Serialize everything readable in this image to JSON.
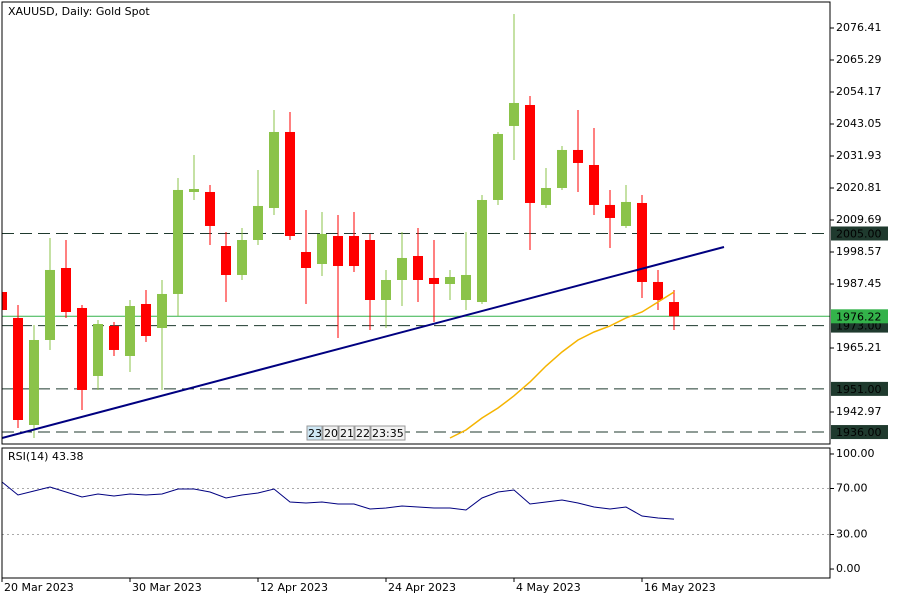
{
  "chart_data": [
    {
      "type": "candlestick",
      "title": "XAUUSD, Daily:  Gold Spot",
      "categories": [
        "20 Mar 2023",
        null,
        null,
        null,
        null,
        null,
        null,
        null,
        "30 Mar 2023",
        null,
        null,
        null,
        null,
        null,
        null,
        null,
        "12 Apr 2023",
        null,
        null,
        null,
        null,
        null,
        null,
        null,
        "24 Apr 2023",
        null,
        null,
        null,
        null,
        null,
        null,
        null,
        "4 May 2023",
        null,
        null,
        null,
        null,
        null,
        null,
        null,
        "16 May 2023",
        null,
        null
      ],
      "open": [
        1984.67,
        1975.64,
        1938.45,
        1967.99,
        1993.01,
        1979.11,
        1955.48,
        1972.86,
        1962.43,
        1980.5,
        1972.16,
        1983.98,
        2019.42,
        2019.42,
        2000.65,
        1990.58,
        2002.74,
        2013.86,
        2040.27,
        1998.57,
        1994.4,
        2004.13,
        2004.13,
        2002.74,
        1981.89,
        1988.84,
        1997.18,
        1989.54,
        1987.45,
        1981.89,
        1981.19,
        2016.64,
        2042.36,
        2049.65,
        2014.91,
        2020.81,
        2034.02,
        2028.8,
        2014.91,
        2007.61,
        2015.6,
        1988.15,
        1981.19
      ],
      "high": [
        1985.37,
        1980.15,
        1973.2,
        2003.43,
        2002.73,
        1980.15,
        1974.94,
        1974.24,
        1981.89,
        1985.37,
        1988.84,
        2024.3,
        2032.28,
        2021.85,
        2005.52,
        2006.91,
        2027.07,
        2047.91,
        2047.22,
        2013.17,
        2012.47,
        2011.43,
        2012.47,
        2004.83,
        1992.32,
        2005.52,
        2006.91,
        2002.73,
        1992.32,
        2005.52,
        2018.38,
        2040.27,
        2081.28,
        2052.78,
        2027.76,
        2035.41,
        2047.91,
        2041.66,
        2020.12,
        2021.85,
        2018.38,
        1992.32,
        1985.37
      ],
      "low": [
        1977.72,
        1937.41,
        1933.93,
        1964.52,
        1975.64,
        1943.66,
        1950.62,
        1962.43,
        1956.87,
        1967.3,
        1950.62,
        1976.33,
        2016.64,
        2000.99,
        1981.19,
        1988.84,
        2000.99,
        2011.43,
        2002.73,
        1980.5,
        1990.23,
        1968.69,
        1991.62,
        1971.47,
        1972.16,
        1979.8,
        1981.19,
        1974.24,
        1981.89,
        1978.41,
        1980.5,
        2014.91,
        2030.54,
        1999.27,
        2013.86,
        2020.12,
        2019.42,
        2011.43,
        1999.96,
        2006.91,
        1982.58,
        1978.41,
        1971.47
      ],
      "close": [
        1978.41,
        1940.19,
        1967.99,
        1992.32,
        1977.72,
        1950.62,
        1973.55,
        1964.52,
        1979.8,
        1969.38,
        1983.98,
        2020.12,
        2020.46,
        2007.61,
        1990.58,
        2002.74,
        2014.56,
        2040.27,
        2004.13,
        1993.01,
        2004.83,
        1993.7,
        1993.7,
        1981.89,
        1988.84,
        1996.49,
        1988.84,
        1987.45,
        1989.88,
        1990.58,
        2016.64,
        2039.58,
        2050.35,
        2015.6,
        2020.81,
        2034.02,
        2029.5,
        2014.91,
        2010.39,
        2015.95,
        1988.15,
        1981.89,
        1976.22
      ],
      "up_color": "#8bc34a",
      "down_color": "#ff0000",
      "ylim": [
        1931.85,
        2085.44
      ],
      "yticks": [
        2076.41,
        2065.29,
        2054.17,
        2043.05,
        2031.93,
        2020.81,
        2009.69,
        1998.57,
        1987.45,
        1965.21,
        1942.97
      ],
      "levels": [
        {
          "value": 2005,
          "label": "2005.00"
        },
        {
          "value": 1973,
          "label": "1973.00"
        },
        {
          "value": 1951,
          "label": "1951.00"
        },
        {
          "value": 1936,
          "label": "1936.00"
        }
      ],
      "level_color": "#1f3a2e",
      "current_price": {
        "value": 1976.22,
        "label": "1976.22",
        "color": "#33b24a"
      },
      "trendline": {
        "x": [
          0,
          45.125
        ],
        "values": [
          1933.93,
          2000.31
        ],
        "color": "#000080"
      },
      "moving_average": {
        "color": "#f5b400",
        "values": [
          null,
          null,
          null,
          null,
          null,
          null,
          null,
          null,
          null,
          null,
          null,
          null,
          null,
          null,
          null,
          null,
          null,
          null,
          null,
          null,
          null,
          null,
          null,
          null,
          null,
          null,
          null,
          null,
          1933.93,
          1936.71,
          1940.88,
          1944.36,
          1948.58,
          1953.4,
          1958.95,
          1963.82,
          1967.99,
          1970.77,
          1972.86,
          1975.64,
          1977.72,
          1981.19,
          1984.67
        ]
      },
      "time_markers": [
        "23",
        "20",
        "21",
        "22",
        "23:35"
      ]
    },
    {
      "type": "line",
      "title": "RSI(14) 43.38",
      "color": "#000080",
      "values": [
        75.65,
        64.35,
        67.83,
        71.3,
        66.96,
        62.61,
        65.22,
        63.48,
        65.22,
        64.35,
        65.22,
        69.57,
        69.57,
        66.96,
        61.74,
        64.35,
        66.09,
        69.57,
        58.26,
        57.39,
        58.26,
        56.52,
        56.52,
        52.17,
        53.04,
        54.78,
        53.91,
        53.04,
        53.04,
        51.3,
        61.74,
        66.96,
        68.7,
        56.52,
        58.26,
        60.0,
        57.39,
        53.91,
        52.17,
        53.91,
        46.09,
        44.35,
        43.38
      ],
      "ylim": [
        -7.8,
        105.2
      ],
      "yticks": [
        {
          "value": 100,
          "label": "100.00"
        },
        {
          "value": 70,
          "label": "70.00"
        },
        {
          "value": 30,
          "label": "30.00"
        },
        {
          "value": 0,
          "label": "0.00"
        }
      ],
      "dotted_levels": [
        70,
        30
      ]
    }
  ]
}
